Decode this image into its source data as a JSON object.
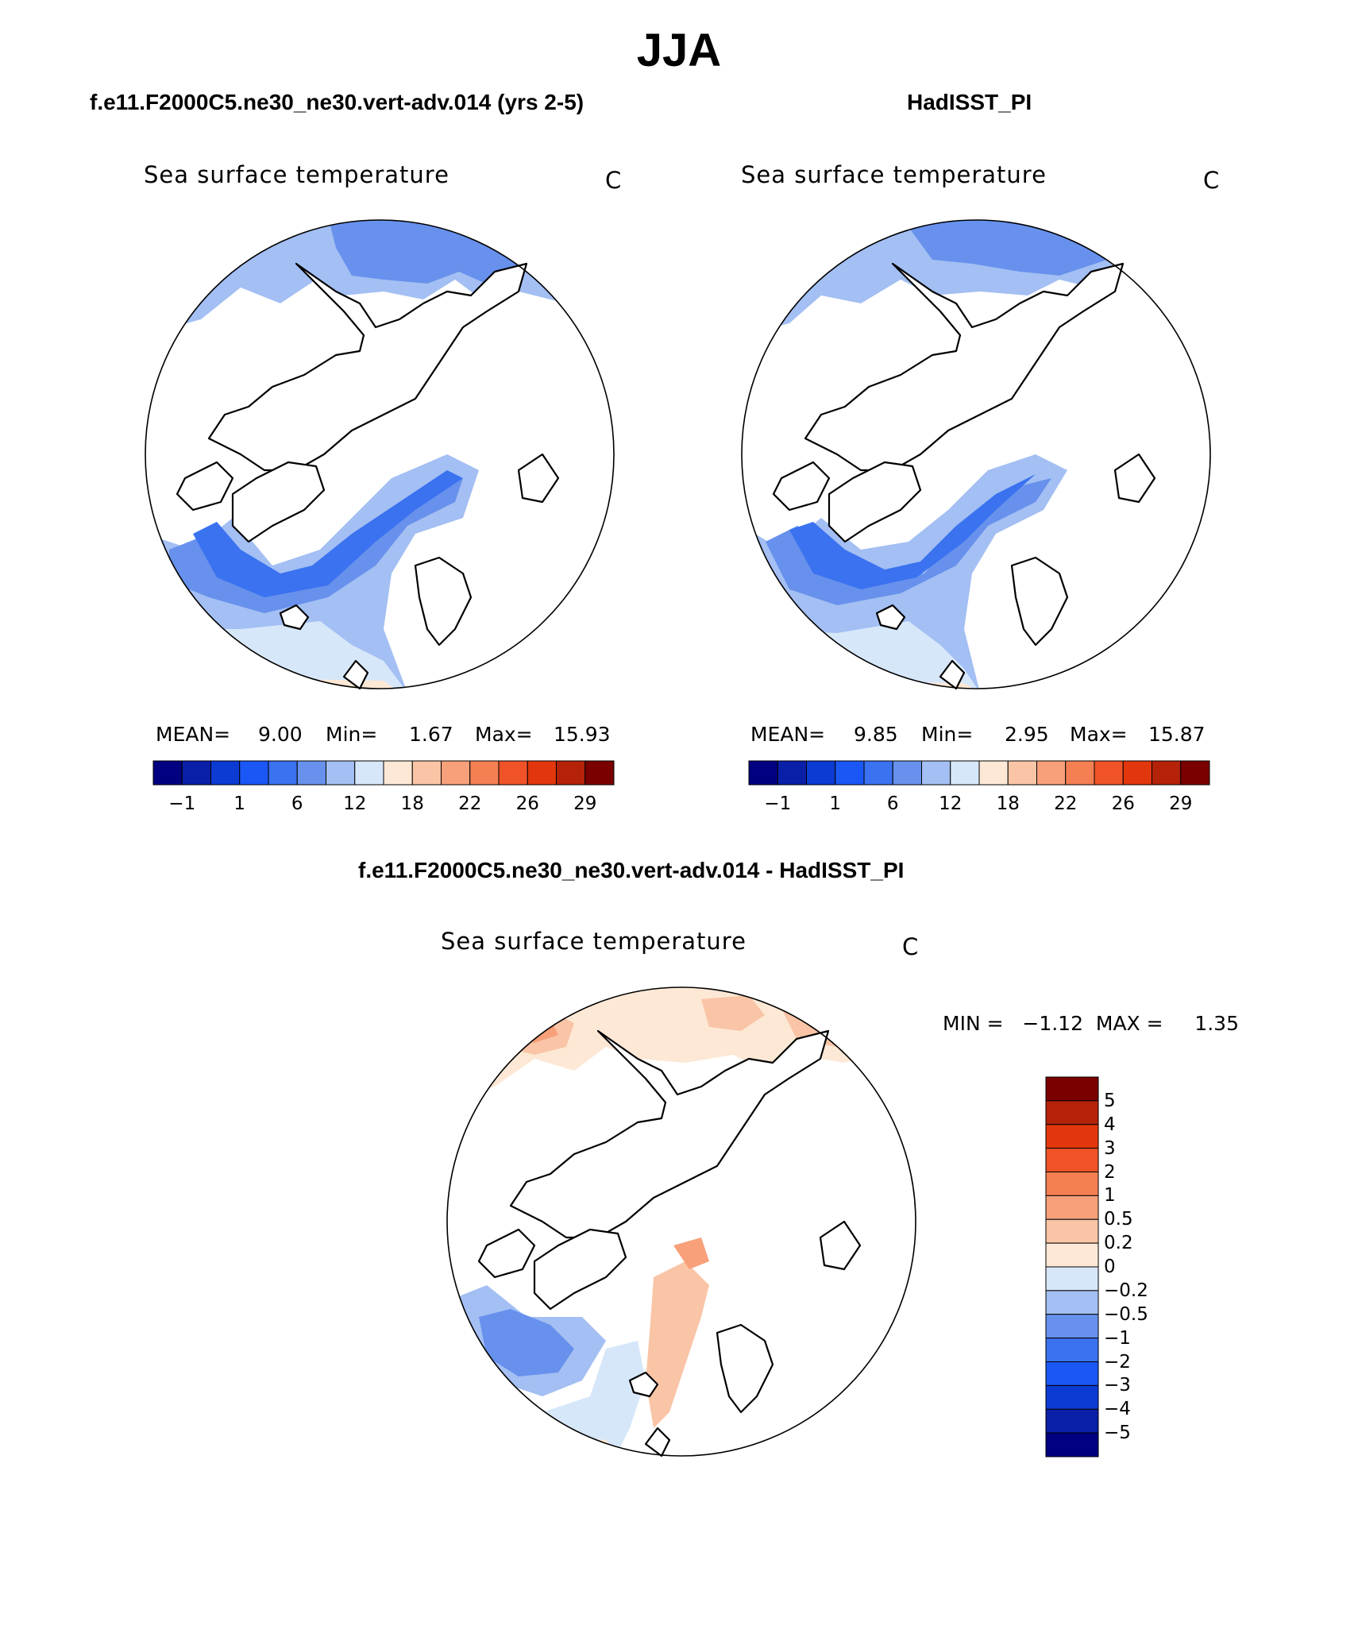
{
  "title": "JJA",
  "panels": [
    {
      "heading": "f.e11.F2000C5.ne30_ne30.vert-adv.014 (yrs 2-5)",
      "map_title": "Sea surface temperature",
      "units": "C",
      "stats": {
        "mean_label": "MEAN=",
        "mean": "9.00",
        "min_label": "Min=",
        "min": "1.67",
        "max_label": "Max=",
        "max": "15.93"
      }
    },
    {
      "heading": "HadISST_PI",
      "map_title": "Sea surface temperature",
      "units": "C",
      "stats": {
        "mean_label": "MEAN=",
        "mean": "9.85",
        "min_label": "Min=",
        "min": "2.95",
        "max_label": "Max=",
        "max": "15.87"
      }
    },
    {
      "heading": "f.e11.F2000C5.ne30_ne30.vert-adv.014 - HadISST_PI",
      "map_title": "Sea surface temperature",
      "units": "C",
      "stats_line": "MIN =   −1.12  MAX =     1.35"
    }
  ],
  "colorbar_top": {
    "colors": [
      "#000080",
      "#0a1fa8",
      "#0c3bd4",
      "#1b57f5",
      "#3a72f0",
      "#6791ec",
      "#a3bff3",
      "#d7e7fa",
      "#fde8d5",
      "#f9c5a6",
      "#f7a07a",
      "#f47f52",
      "#f05328",
      "#e2370c",
      "#b5220a",
      "#7a0000"
    ],
    "ticks": [
      "−1",
      "1",
      "6",
      "12",
      "18",
      "22",
      "26",
      "29"
    ]
  },
  "colorbar_diff": {
    "colors": [
      "#000080",
      "#0a1fa8",
      "#0c3bd4",
      "#1b57f5",
      "#3a72f0",
      "#6791ec",
      "#a3bff3",
      "#d7e7fa",
      "#fde8d5",
      "#f9c5a6",
      "#f7a07a",
      "#f47f52",
      "#f05328",
      "#e2370c",
      "#b5220a",
      "#7a0000"
    ],
    "ticks": [
      "−5",
      "−4",
      "−3",
      "−2",
      "−1",
      "−0.5",
      "−0.2",
      "0",
      "0.2",
      "0.5",
      "1",
      "2",
      "3",
      "4",
      "5"
    ]
  }
}
